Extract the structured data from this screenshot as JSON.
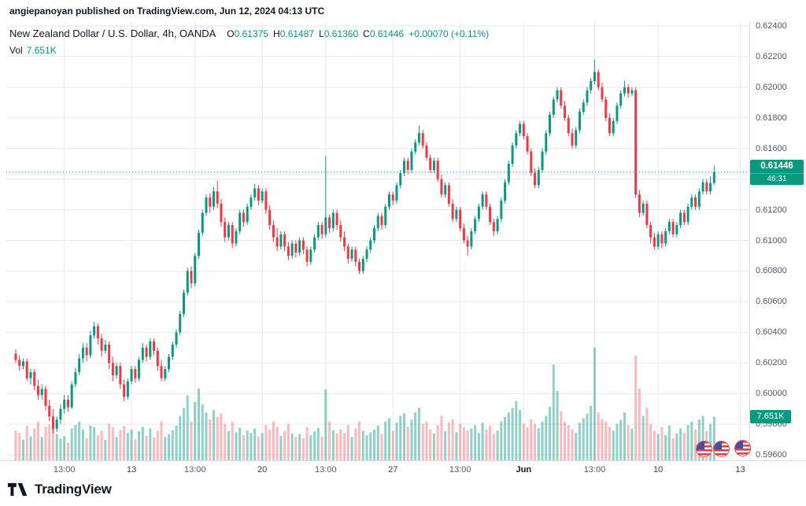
{
  "header": {
    "attribution": "angiepanoyan published on TradingView.com, Jun 12, 2024 04:13 UTC"
  },
  "legend": {
    "title": "New Zealand Dollar / U.S. Dollar, 4h, OANDA",
    "ohlc": [
      {
        "label": "O",
        "value": "0.61375"
      },
      {
        "label": "H",
        "value": "0.61487"
      },
      {
        "label": "L",
        "value": "0.61360"
      },
      {
        "label": "C",
        "value": "0.61446"
      }
    ],
    "change": "+0.00070 (+0.11%)",
    "vol_label": "Vol",
    "vol_value": "7.651K"
  },
  "axis": {
    "price_badge": "0.61446",
    "countdown": "46:31",
    "volume_badge": "7.651K"
  },
  "footer": {
    "brand": "TradingView"
  },
  "colors": {
    "up": "#089981",
    "down": "#f23645",
    "vol_up": "rgba(8,153,129,0.45)",
    "vol_down": "rgba(242,54,69,0.35)",
    "grid": "#e7eaee",
    "axis_line": "#d7dce3",
    "current_price_line": "#089981",
    "badge": "#089981"
  },
  "event_icons": {
    "country": "US",
    "count": 3
  },
  "chart_data": {
    "type": "candlestick",
    "title": "New Zealand Dollar / U.S. Dollar",
    "symbol": "NZD/USD",
    "interval": "4h",
    "exchange": "OANDA",
    "current_price": 0.61446,
    "price_scale": 100000,
    "slots": 196,
    "volume_scale_max": 20000,
    "y_axis": {
      "min": 0.596,
      "max": 0.624,
      "tick_labels": [
        "0.62400",
        "0.62200",
        "0.62000",
        "0.61800",
        "0.61600",
        "0.61400",
        "0.61200",
        "0.61000",
        "0.60800",
        "0.60600",
        "0.60400",
        "0.60200",
        "0.60000",
        "0.59800",
        "0.59600"
      ]
    },
    "x_ticks": [
      {
        "i": 13,
        "label": "13:00",
        "style": "minor"
      },
      {
        "i": 31,
        "label": "13",
        "style": "day"
      },
      {
        "i": 48,
        "label": "13:00",
        "style": "minor"
      },
      {
        "i": 66,
        "label": "20",
        "style": "day"
      },
      {
        "i": 83,
        "label": "13:00",
        "style": "minor"
      },
      {
        "i": 101,
        "label": "27",
        "style": "day"
      },
      {
        "i": 119,
        "label": "13:00",
        "style": "minor"
      },
      {
        "i": 136,
        "label": "Jun",
        "style": "month"
      },
      {
        "i": 155,
        "label": "13:00",
        "style": "minor"
      },
      {
        "i": 172,
        "label": "10",
        "style": "day"
      },
      {
        "i": 194,
        "label": "13",
        "style": "day"
      }
    ],
    "candles": [
      [
        60260,
        60290,
        60200,
        60220
      ],
      [
        60220,
        60250,
        60150,
        60180
      ],
      [
        60180,
        60230,
        60160,
        60210
      ],
      [
        60210,
        60230,
        60080,
        60100
      ],
      [
        60100,
        60160,
        60060,
        60140
      ],
      [
        60140,
        60160,
        60020,
        60050
      ],
      [
        60050,
        60090,
        59960,
        59990
      ],
      [
        59990,
        60060,
        59960,
        60030
      ],
      [
        60030,
        60050,
        59890,
        59920
      ],
      [
        59920,
        59960,
        59820,
        59850
      ],
      [
        59850,
        59900,
        59740,
        59770
      ],
      [
        59770,
        59850,
        59750,
        59830
      ],
      [
        59830,
        59930,
        59800,
        59900
      ],
      [
        59900,
        59990,
        59870,
        59960
      ],
      [
        59960,
        59990,
        59880,
        59910
      ],
      [
        59910,
        60080,
        59900,
        60060
      ],
      [
        60060,
        60170,
        60040,
        60140
      ],
      [
        60140,
        60260,
        60120,
        60230
      ],
      [
        60230,
        60330,
        60200,
        60300
      ],
      [
        60300,
        60330,
        60210,
        60250
      ],
      [
        60250,
        60410,
        60230,
        60380
      ],
      [
        60380,
        60470,
        60360,
        60440
      ],
      [
        60440,
        60460,
        60320,
        60360
      ],
      [
        60360,
        60390,
        60240,
        60280
      ],
      [
        60280,
        60350,
        60260,
        60320
      ],
      [
        60320,
        60340,
        60160,
        60200
      ],
      [
        60200,
        60240,
        60080,
        60120
      ],
      [
        60120,
        60200,
        60100,
        60180
      ],
      [
        60180,
        60200,
        60030,
        60060
      ],
      [
        60060,
        60090,
        59950,
        59980
      ],
      [
        59980,
        60100,
        59960,
        60080
      ],
      [
        60080,
        60180,
        60060,
        60160
      ],
      [
        60160,
        60180,
        60070,
        60100
      ],
      [
        60100,
        60240,
        60080,
        60220
      ],
      [
        60220,
        60330,
        60200,
        60300
      ],
      [
        60300,
        60320,
        60210,
        60240
      ],
      [
        60240,
        60360,
        60220,
        60340
      ],
      [
        60340,
        60360,
        60250,
        60280
      ],
      [
        60280,
        60300,
        60150,
        60180
      ],
      [
        60180,
        60220,
        60080,
        60100
      ],
      [
        60100,
        60180,
        60080,
        60160
      ],
      [
        60160,
        60260,
        60140,
        60240
      ],
      [
        60240,
        60340,
        60220,
        60320
      ],
      [
        60320,
        60420,
        60300,
        60400
      ],
      [
        60400,
        60540,
        60380,
        60520
      ],
      [
        60520,
        60680,
        60500,
        60660
      ],
      [
        60660,
        60820,
        60640,
        60800
      ],
      [
        60800,
        60830,
        60690,
        60720
      ],
      [
        60720,
        60920,
        60700,
        60900
      ],
      [
        60900,
        61070,
        60880,
        61050
      ],
      [
        61050,
        61200,
        61030,
        61180
      ],
      [
        61180,
        61300,
        61160,
        61280
      ],
      [
        61280,
        61310,
        61180,
        61220
      ],
      [
        61220,
        61350,
        61200,
        61320
      ],
      [
        61320,
        61390,
        61210,
        61240
      ],
      [
        61240,
        61270,
        61090,
        61120
      ],
      [
        61120,
        61150,
        60990,
        61020
      ],
      [
        61020,
        61120,
        61000,
        61100
      ],
      [
        61100,
        61120,
        60950,
        60980
      ],
      [
        60980,
        61080,
        60960,
        61060
      ],
      [
        61060,
        61200,
        61040,
        61180
      ],
      [
        61180,
        61200,
        61090,
        61120
      ],
      [
        61120,
        61240,
        61100,
        61220
      ],
      [
        61220,
        61300,
        61200,
        61280
      ],
      [
        61280,
        61370,
        61260,
        61340
      ],
      [
        61340,
        61360,
        61230,
        61260
      ],
      [
        61260,
        61340,
        61240,
        61320
      ],
      [
        61320,
        61340,
        61170,
        61200
      ],
      [
        61200,
        61230,
        61070,
        61100
      ],
      [
        61100,
        61130,
        60990,
        61020
      ],
      [
        61020,
        61080,
        60930,
        60960
      ],
      [
        60960,
        61060,
        60940,
        61040
      ],
      [
        61040,
        61060,
        60930,
        60960
      ],
      [
        60960,
        60990,
        60870,
        60900
      ],
      [
        60900,
        61000,
        60880,
        60980
      ],
      [
        60980,
        61000,
        60890,
        60920
      ],
      [
        60920,
        61020,
        60900,
        61000
      ],
      [
        61000,
        61020,
        60910,
        60940
      ],
      [
        60940,
        60960,
        60830,
        60860
      ],
      [
        60860,
        60960,
        60840,
        60940
      ],
      [
        60940,
        61040,
        60920,
        61020
      ],
      [
        61020,
        61120,
        61000,
        61100
      ],
      [
        61100,
        61120,
        61010,
        61040
      ],
      [
        61040,
        61550,
        61020,
        61150
      ],
      [
        61150,
        61170,
        61050,
        61080
      ],
      [
        61080,
        61200,
        61060,
        61180
      ],
      [
        61180,
        61200,
        61070,
        61100
      ],
      [
        61100,
        61130,
        60990,
        61020
      ],
      [
        61020,
        61060,
        60930,
        60960
      ],
      [
        60960,
        60980,
        60850,
        60880
      ],
      [
        60880,
        60960,
        60860,
        60940
      ],
      [
        60940,
        60960,
        60830,
        60860
      ],
      [
        60860,
        60880,
        60780,
        60800
      ],
      [
        60800,
        60900,
        60780,
        60880
      ],
      [
        60880,
        60960,
        60860,
        60940
      ],
      [
        60940,
        61020,
        60920,
        61000
      ],
      [
        61000,
        61100,
        60980,
        61080
      ],
      [
        61080,
        61180,
        61060,
        61160
      ],
      [
        61160,
        61180,
        61070,
        61100
      ],
      [
        61100,
        61240,
        61080,
        61220
      ],
      [
        61220,
        61320,
        61200,
        61300
      ],
      [
        61300,
        61320,
        61230,
        61260
      ],
      [
        61260,
        61380,
        61240,
        61360
      ],
      [
        61360,
        61460,
        61340,
        61440
      ],
      [
        61440,
        61540,
        61420,
        61520
      ],
      [
        61520,
        61540,
        61430,
        61460
      ],
      [
        61460,
        61600,
        61440,
        61580
      ],
      [
        61580,
        61660,
        61560,
        61640
      ],
      [
        61640,
        61750,
        61620,
        61700
      ],
      [
        61700,
        61720,
        61600,
        61620
      ],
      [
        61620,
        61640,
        61520,
        61540
      ],
      [
        61540,
        61560,
        61440,
        61460
      ],
      [
        61460,
        61540,
        61440,
        61520
      ],
      [
        61520,
        61540,
        61380,
        61400
      ],
      [
        61400,
        61430,
        61280,
        61300
      ],
      [
        61300,
        61380,
        61280,
        61360
      ],
      [
        61360,
        61380,
        61220,
        61240
      ],
      [
        61240,
        61270,
        61120,
        61140
      ],
      [
        61140,
        61220,
        61120,
        61200
      ],
      [
        61200,
        61220,
        61060,
        61080
      ],
      [
        61080,
        61110,
        60980,
        61000
      ],
      [
        61000,
        61030,
        60900,
        60960
      ],
      [
        60960,
        61080,
        60940,
        61060
      ],
      [
        61060,
        61160,
        61040,
        61140
      ],
      [
        61140,
        61240,
        61120,
        61220
      ],
      [
        61220,
        61320,
        61200,
        61300
      ],
      [
        61300,
        61320,
        61200,
        61220
      ],
      [
        61220,
        61240,
        61100,
        61120
      ],
      [
        61120,
        61140,
        61030,
        61060
      ],
      [
        61060,
        61160,
        61040,
        61140
      ],
      [
        61140,
        61280,
        61120,
        61260
      ],
      [
        61260,
        61400,
        61240,
        61380
      ],
      [
        61380,
        61520,
        61360,
        61500
      ],
      [
        61500,
        61640,
        61480,
        61620
      ],
      [
        61620,
        61720,
        61600,
        61700
      ],
      [
        61700,
        61780,
        61680,
        61760
      ],
      [
        61760,
        61780,
        61660,
        61680
      ],
      [
        61680,
        61700,
        61560,
        61580
      ],
      [
        61580,
        61600,
        61420,
        61440
      ],
      [
        61440,
        61470,
        61340,
        61360
      ],
      [
        61360,
        61480,
        61340,
        61460
      ],
      [
        61460,
        61600,
        61440,
        61580
      ],
      [
        61580,
        61720,
        61560,
        61700
      ],
      [
        61700,
        61840,
        61680,
        61820
      ],
      [
        61820,
        61940,
        61800,
        61920
      ],
      [
        61920,
        62000,
        61900,
        61980
      ],
      [
        61980,
        62000,
        61860,
        61880
      ],
      [
        61880,
        61910,
        61780,
        61800
      ],
      [
        61800,
        61820,
        61680,
        61700
      ],
      [
        61700,
        61730,
        61600,
        61620
      ],
      [
        61620,
        61740,
        61600,
        61720
      ],
      [
        61720,
        61860,
        61700,
        61840
      ],
      [
        61840,
        61920,
        61820,
        61900
      ],
      [
        61900,
        62000,
        61880,
        61980
      ],
      [
        61980,
        62060,
        61960,
        62040
      ],
      [
        62040,
        62180,
        62020,
        62100
      ],
      [
        62100,
        62120,
        61980,
        62000
      ],
      [
        62000,
        62030,
        61900,
        61920
      ],
      [
        61920,
        61940,
        61780,
        61800
      ],
      [
        61800,
        61830,
        61680,
        61700
      ],
      [
        61700,
        61800,
        61680,
        61780
      ],
      [
        61780,
        61900,
        61760,
        61880
      ],
      [
        61880,
        61980,
        61860,
        61960
      ],
      [
        61960,
        62040,
        61940,
        62000
      ],
      [
        62000,
        62020,
        61930,
        61960
      ],
      [
        61960,
        62000,
        61940,
        61980
      ],
      [
        61980,
        62000,
        61280,
        61300
      ],
      [
        61300,
        61330,
        61150,
        61180
      ],
      [
        61180,
        61260,
        61160,
        61240
      ],
      [
        61240,
        61260,
        61080,
        61100
      ],
      [
        61100,
        61120,
        60980,
        61020
      ],
      [
        61020,
        61050,
        60940,
        60960
      ],
      [
        60960,
        61060,
        60940,
        61040
      ],
      [
        61040,
        61060,
        60950,
        60980
      ],
      [
        60980,
        61080,
        60960,
        61060
      ],
      [
        61060,
        61140,
        61040,
        61120
      ],
      [
        61120,
        61140,
        61020,
        61040
      ],
      [
        61040,
        61120,
        61020,
        61100
      ],
      [
        61100,
        61200,
        61080,
        61180
      ],
      [
        61180,
        61200,
        61100,
        61120
      ],
      [
        61120,
        61240,
        61100,
        61220
      ],
      [
        61220,
        61300,
        61200,
        61280
      ],
      [
        61280,
        61300,
        61200,
        61220
      ],
      [
        61220,
        61340,
        61200,
        61320
      ],
      [
        61320,
        61400,
        61300,
        61380
      ],
      [
        61380,
        61400,
        61300,
        61320
      ],
      [
        61320,
        61420,
        61300,
        61375
      ],
      [
        61375,
        61487,
        61360,
        61446
      ]
    ],
    "volumes": [
      5200,
      4800,
      3600,
      6100,
      4200,
      5600,
      6800,
      4100,
      5900,
      6300,
      7200,
      4600,
      3800,
      4200,
      3100,
      5600,
      6200,
      6800,
      5400,
      3900,
      6100,
      5800,
      4400,
      5200,
      3600,
      6400,
      5800,
      4100,
      5300,
      6000,
      4800,
      5400,
      3700,
      5100,
      5900,
      4300,
      5600,
      4000,
      5200,
      6800,
      4100,
      4600,
      5300,
      6100,
      7800,
      9200,
      11400,
      6800,
      10200,
      12600,
      9800,
      8400,
      7200,
      8800,
      7600,
      8200,
      6400,
      5100,
      6800,
      4900,
      5700,
      4400,
      5200,
      4800,
      5600,
      4200,
      4800,
      6200,
      5400,
      6800,
      5900,
      4300,
      5100,
      6400,
      4700,
      4100,
      4600,
      3900,
      5800,
      4400,
      5100,
      5700,
      4200,
      12400,
      6800,
      5300,
      4700,
      5500,
      4800,
      6200,
      4100,
      5600,
      6800,
      5200,
      4400,
      4900,
      5400,
      6100,
      4600,
      6800,
      7400,
      5200,
      6600,
      7800,
      8200,
      5900,
      7100,
      8400,
      9200,
      6400,
      6800,
      5400,
      4700,
      6200,
      7800,
      5100,
      6600,
      7200,
      4900,
      6400,
      5800,
      5200,
      5600,
      6200,
      4800,
      6600,
      5400,
      6100,
      4600,
      5200,
      6800,
      7600,
      8400,
      9200,
      10400,
      8800,
      6400,
      5800,
      7200,
      6400,
      5600,
      6800,
      7800,
      9400,
      16800,
      12200,
      8600,
      6800,
      6200,
      5400,
      4800,
      6600,
      7400,
      8200,
      9600,
      19800,
      8400,
      7200,
      6800,
      5900,
      5200,
      6400,
      7100,
      8400,
      6200,
      5600,
      18400,
      12600,
      7800,
      9200,
      6400,
      5200,
      4600,
      5800,
      4400,
      6100,
      3900,
      4700,
      5600,
      4800,
      6200,
      6800,
      5400,
      7200,
      7800,
      5100,
      6400,
      7651
    ]
  }
}
